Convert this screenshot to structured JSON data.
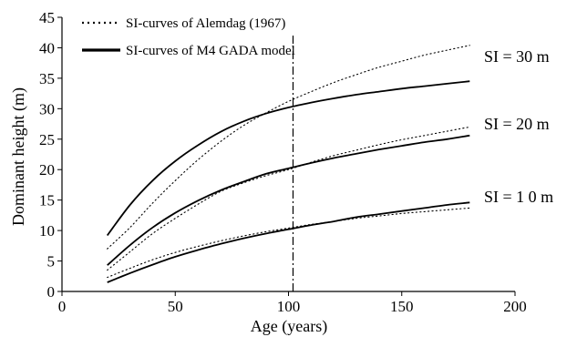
{
  "chart_data": {
    "type": "line",
    "xlabel": "Age (years)",
    "ylabel": "Dominant height (m)",
    "xlim": [
      0,
      200
    ],
    "ylim": [
      0,
      45
    ],
    "xticks": [
      0,
      50,
      100,
      150,
      200
    ],
    "yticks": [
      0,
      5,
      10,
      15,
      20,
      25,
      30,
      35,
      40,
      45
    ],
    "grid": false,
    "legend": {
      "position": "top-left",
      "entries": [
        {
          "label": "SI-curves of Alemdag (1967)",
          "style": "dotted"
        },
        {
          "label": "SI-curves of M4 GADA model",
          "style": "solid"
        }
      ]
    },
    "reference_line": {
      "x": 102,
      "style": "dash-dot"
    },
    "curve_labels": [
      {
        "text": "SI = 30 m",
        "x": 182,
        "y": 39.5
      },
      {
        "text": "SI = 20 m",
        "x": 182,
        "y": 26.5
      },
      {
        "text": "SI = 1 0 m",
        "x": 182,
        "y": 14.8
      }
    ],
    "x": [
      20,
      30,
      40,
      50,
      60,
      70,
      80,
      90,
      100,
      110,
      120,
      130,
      140,
      150,
      160,
      170,
      180
    ],
    "series": [
      {
        "group": "alemdag",
        "si": 30,
        "style": "dotted",
        "values": [
          7.0,
          10.5,
          14.5,
          18.2,
          21.6,
          24.6,
          27.2,
          29.3,
          31.2,
          32.8,
          34.3,
          35.6,
          36.8,
          37.8,
          38.8,
          39.6,
          40.4
        ]
      },
      {
        "group": "alemdag",
        "si": 20,
        "style": "dotted",
        "values": [
          3.5,
          6.5,
          9.5,
          12.0,
          14.3,
          16.4,
          17.8,
          19.0,
          20.0,
          21.2,
          22.3,
          23.2,
          24.1,
          24.9,
          25.6,
          26.3,
          27.0
        ]
      },
      {
        "group": "alemdag",
        "si": 10,
        "style": "dotted",
        "values": [
          2.3,
          3.8,
          5.2,
          6.4,
          7.4,
          8.3,
          9.1,
          9.8,
          10.4,
          11.0,
          11.5,
          12.0,
          12.4,
          12.8,
          13.1,
          13.4,
          13.7
        ]
      },
      {
        "group": "gada",
        "si": 30,
        "style": "solid",
        "values": [
          9.2,
          14.2,
          18.2,
          21.4,
          24.0,
          26.2,
          27.9,
          29.2,
          30.2,
          31.0,
          31.7,
          32.3,
          32.8,
          33.3,
          33.7,
          34.1,
          34.5
        ]
      },
      {
        "group": "gada",
        "si": 20,
        "style": "solid",
        "values": [
          4.3,
          7.6,
          10.5,
          12.9,
          14.9,
          16.6,
          18.0,
          19.3,
          20.2,
          21.1,
          21.9,
          22.6,
          23.3,
          23.9,
          24.5,
          25.0,
          25.6
        ]
      },
      {
        "group": "gada",
        "si": 10,
        "style": "solid",
        "values": [
          1.5,
          3.0,
          4.4,
          5.7,
          6.8,
          7.8,
          8.7,
          9.5,
          10.2,
          10.9,
          11.5,
          12.2,
          12.7,
          13.2,
          13.7,
          14.2,
          14.6
        ]
      }
    ]
  }
}
